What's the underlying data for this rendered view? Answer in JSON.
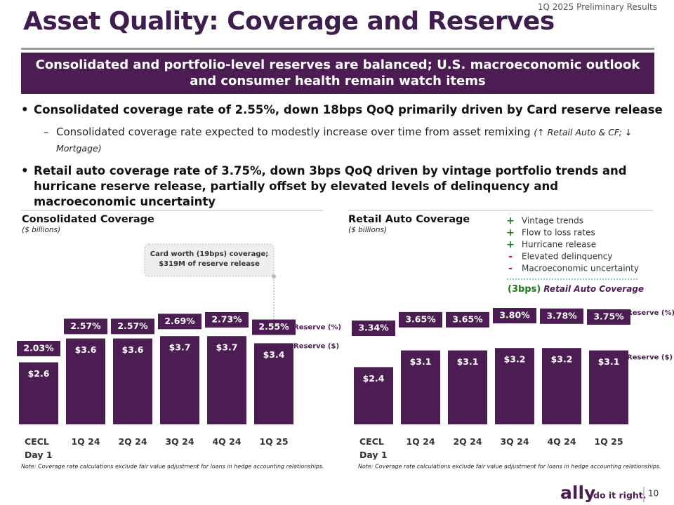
{
  "header": {
    "tag": "1Q 2025 Preliminary Results",
    "title": "Asset Quality: Coverage and Reserves"
  },
  "banner": "Consolidated and portfolio-level reserves are balanced; U.S. macroeconomic outlook and consumer health remain watch items",
  "bullets": [
    {
      "text": "Consolidated coverage rate of 2.55%, down 18bps QoQ  primarily driven by Card reserve release",
      "sub": {
        "text": "Consolidated coverage rate expected to modestly increase over time from asset remixing",
        "detail": "(↑ Retail Auto & CF; ↓ Mortgage)"
      }
    },
    {
      "text": "Retail auto coverage rate of 3.75%, down 3bps QoQ driven by vintage portfolio trends and hurricane reserve release, partially offset by elevated levels of delinquency and macroeconomic uncertainty"
    }
  ],
  "chart_data": [
    {
      "type": "bar",
      "title": "Consolidated Coverage",
      "subtitle": "($ billions)",
      "categories": [
        "CECL Day 1",
        "1Q 24",
        "2Q 24",
        "3Q 24",
        "4Q 24",
        "1Q 25"
      ],
      "series": [
        {
          "name": "Reserve ($)",
          "color": "#4b1d52",
          "values": [
            2.6,
            3.6,
            3.6,
            3.7,
            3.7,
            3.4
          ],
          "value_labels": [
            "$2.6",
            "$3.6",
            "$3.6",
            "$3.7",
            "$3.7",
            "$3.4"
          ]
        },
        {
          "name": "Reserve (%)",
          "color": "#4b1d52",
          "values": [
            2.03,
            2.57,
            2.57,
            2.69,
            2.73,
            2.55
          ],
          "value_labels": [
            "2.03%",
            "2.57%",
            "2.57%",
            "2.69%",
            "2.73%",
            "2.55%"
          ]
        }
      ],
      "annotation": [
        "Card worth (19bps) coverage;",
        "$319M of reserve release"
      ],
      "note": "Note: Coverage rate calculations exclude fair value adjustment for loans in hedge accounting relationships."
    },
    {
      "type": "bar",
      "title": "Retail Auto Coverage",
      "subtitle": "($ billions)",
      "categories": [
        "CECL Day 1",
        "1Q 24",
        "2Q 24",
        "3Q 24",
        "4Q 24",
        "1Q 25"
      ],
      "series": [
        {
          "name": "Reserve ($)",
          "color": "#4b1d52",
          "values": [
            2.4,
            3.1,
            3.1,
            3.2,
            3.2,
            3.1
          ],
          "value_labels": [
            "$2.4",
            "$3.1",
            "$3.1",
            "$3.2",
            "$3.2",
            "$3.1"
          ]
        },
        {
          "name": "Reserve (%)",
          "color": "#4b1d52",
          "values": [
            3.34,
            3.65,
            3.65,
            3.8,
            3.78,
            3.75
          ],
          "value_labels": [
            "3.34%",
            "3.65%",
            "3.65%",
            "3.80%",
            "3.78%",
            "3.75%"
          ]
        }
      ],
      "factors": [
        {
          "sign": "+",
          "label": "Vintage trends",
          "color": "#1e7a1e"
        },
        {
          "sign": "+",
          "label": "Flow to loss rates",
          "color": "#1e7a1e"
        },
        {
          "sign": "+",
          "label": "Hurricane release",
          "color": "#1e7a1e"
        },
        {
          "sign": "-",
          "label": "Elevated delinquency",
          "color": "#c0143c"
        },
        {
          "sign": "-",
          "label": "Macroeconomic uncertainty",
          "color": "#c0143c"
        }
      ],
      "factor_summary": {
        "change": "(3bps)",
        "label": "Retail Auto Coverage"
      },
      "note": "Note: Coverage rate calculations exclude fair value adjustment for loans in hedge accounting relationships."
    }
  ],
  "footer": {
    "brand": "ally",
    "tagline": "do it right.",
    "page": 10
  }
}
